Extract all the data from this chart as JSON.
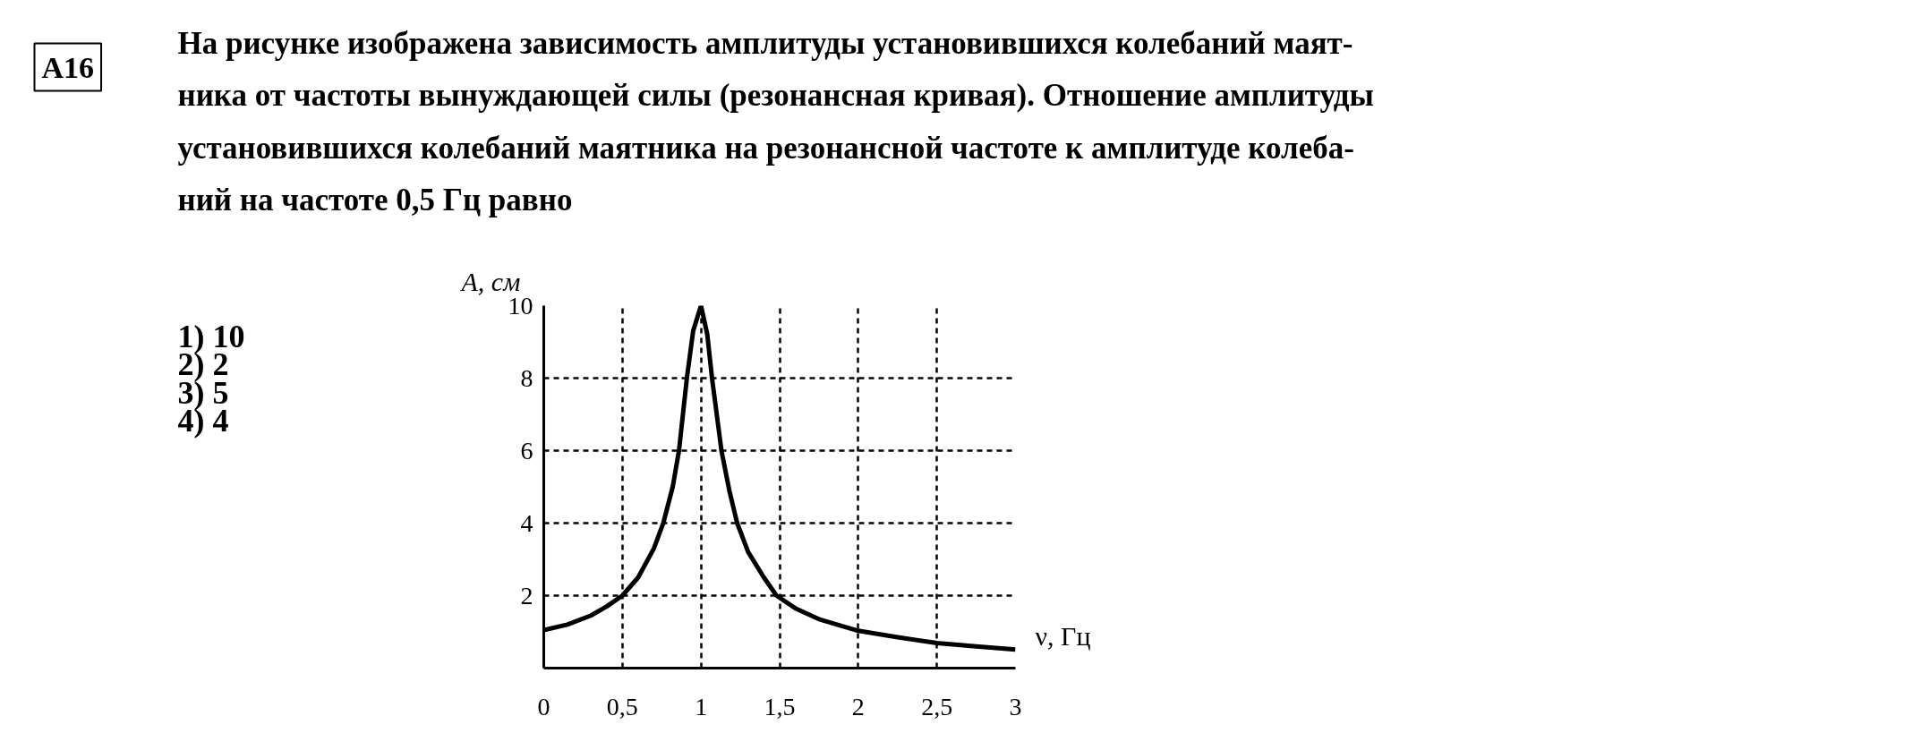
{
  "chart_data": {
    "type": "line",
    "title": "На рисунке изображена зависимость амплитуды установившихся колебаний маят-\nника от частоты вынуждающей силы (резонансная кривая). Отношение амплитуды\nустановившихся колебаний маятника на резонансной частоте к амплитуде колеба-\nний на частоте 0,5 Гц равно",
    "xlabel": "ν, Гц",
    "ylabel": "A, см",
    "annotations": [
      "A16",
      "1) 10",
      "2) 2",
      "3) 5",
      "4) 4"
    ],
    "x": [
      0,
      0.15,
      0.3,
      0.4,
      0.5,
      0.6,
      0.7,
      0.76,
      0.82,
      0.86,
      0.91,
      0.95,
      1.0,
      1.04,
      1.07,
      1.1,
      1.13,
      1.18,
      1.23,
      1.3,
      1.4,
      1.48,
      1.6,
      1.75,
      2.0,
      2.25,
      2.5,
      2.75,
      3.0
    ],
    "series": [
      {
        "color": "#000000",
        "values": [
          1.05,
          1.2,
          1.45,
          1.7,
          2.0,
          2.5,
          3.3,
          4.0,
          5.0,
          6.0,
          8.0,
          9.3,
          10.0,
          9.2,
          8.0,
          7.0,
          6.0,
          4.9,
          4.0,
          3.2,
          2.5,
          2.0,
          1.65,
          1.35,
          1.03,
          0.85,
          0.69,
          0.6,
          0.51
        ]
      }
    ],
    "xlim": [
      0,
      3
    ],
    "ylim": [
      0,
      10
    ],
    "xticks": [
      0,
      {
        "value": 0.5,
        "label": "0,5"
      },
      1,
      {
        "value": 1.5,
        "label": "1,5"
      },
      2,
      {
        "value": 2.5,
        "label": "2,5"
      },
      3
    ],
    "yticks": [
      2,
      4,
      6,
      8,
      10
    ],
    "grid": true
  }
}
